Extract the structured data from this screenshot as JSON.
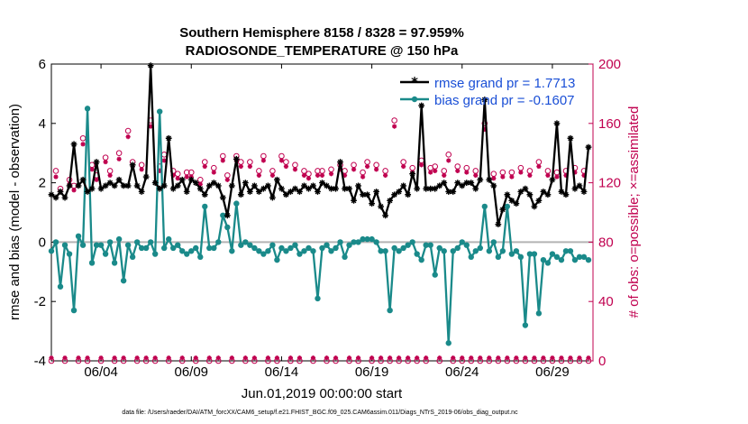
{
  "chart_data": {
    "type": "line",
    "title": "Southern Hemisphere 8158 / 8328 = 97.959%",
    "subtitle": "RADIOSONDE_TEMPERATURE @ 150 hPa",
    "xlabel": "Jun.01,2019 00:00:00 start",
    "ylabel": "rmse and bias (model - observation)",
    "ylabel_right": "# of obs: o=possible; ×=assimilated",
    "ylim": [
      -4,
      6
    ],
    "ylim_right": [
      0,
      200
    ],
    "yticks": [
      "-4",
      "-2",
      "0",
      "2",
      "4",
      "6"
    ],
    "yticks_right": [
      "0",
      "40",
      "80",
      "120",
      "160",
      "200"
    ],
    "xticks": [
      {
        "day": 4,
        "label": "06/04"
      },
      {
        "day": 9,
        "label": "06/09"
      },
      {
        "day": 14,
        "label": "06/14"
      },
      {
        "day": 19,
        "label": "06/19"
      },
      {
        "day": 24,
        "label": "06/24"
      },
      {
        "day": 29,
        "label": "06/29"
      }
    ],
    "xlim": [
      1.25,
      31.25
    ],
    "legend": {
      "placement": "top-right",
      "rmse_label": "rmse grand pr = 1.7713",
      "bias_label": "bias grand pr = -0.1607"
    },
    "footnote": "data file: /Users/raeder/DAI/ATM_forcXX/CAM6_setup/f.e21.FHIST_BGC.f09_025.CAM6assim.011/Diags_NTrS_2019-06/obs_diag_output.nc",
    "series": [
      {
        "name": "rmse",
        "color": "#000000",
        "values": [
          1.6,
          1.5,
          1.7,
          1.5,
          1.9,
          3.3,
          1.9,
          2.1,
          1.7,
          1.8,
          2.7,
          1.8,
          1.9,
          2.0,
          1.9,
          2.1,
          1.9,
          1.9,
          2.6,
          1.9,
          1.7,
          2.2,
          5.95,
          2.0,
          1.8,
          1.9,
          3.5,
          1.8,
          1.9,
          2.1,
          1.7,
          2.1,
          2.0,
          1.8,
          1.6,
          1.9,
          2.0,
          1.9,
          1.5,
          0.9,
          1.9,
          2.8,
          1.6,
          2.0,
          1.7,
          1.9,
          1.7,
          1.8,
          1.9,
          1.5,
          2.1,
          1.8,
          1.6,
          1.7,
          1.8,
          1.7,
          1.9,
          1.8,
          1.9,
          1.7,
          2.0,
          1.9,
          1.8,
          1.8,
          2.7,
          1.8,
          1.8,
          1.4,
          1.9,
          1.6,
          1.6,
          1.3,
          1.7,
          1.2,
          0.9,
          1.4,
          1.6,
          1.7,
          1.9,
          1.6,
          2.3,
          1.8,
          4.6,
          1.8,
          1.8,
          1.8,
          1.9,
          2.0,
          1.7,
          1.7,
          2.0,
          1.9,
          2.0,
          2.0,
          1.8,
          2.1,
          4.8,
          2.1,
          1.9,
          0.6,
          1.1,
          1.6,
          1.4,
          1.3,
          1.7,
          1.8,
          1.6,
          1.2,
          1.4,
          1.7,
          1.6,
          2.1,
          4.0,
          1.7,
          1.6,
          3.5,
          1.8,
          1.9,
          1.7,
          3.2
        ]
      },
      {
        "name": "bias",
        "color": "#1a8a8a",
        "values": [
          -0.3,
          0.0,
          -1.5,
          -0.1,
          -0.4,
          -2.3,
          0.2,
          -0.1,
          4.5,
          -0.7,
          -0.1,
          -0.1,
          -0.4,
          0.0,
          -0.7,
          0.1,
          -1.3,
          -0.1,
          -0.5,
          0.0,
          -0.2,
          -0.2,
          0.0,
          -0.4,
          4.4,
          -0.2,
          0.1,
          -0.2,
          -0.1,
          -0.3,
          -0.4,
          -0.3,
          -0.2,
          -0.5,
          1.2,
          -0.2,
          -0.2,
          0.0,
          0.9,
          0.5,
          -0.3,
          1.3,
          -0.1,
          0.0,
          -0.1,
          -0.2,
          -0.3,
          -0.4,
          -0.3,
          -0.1,
          -0.6,
          -0.2,
          -0.3,
          -0.2,
          -0.1,
          -0.4,
          -0.3,
          -0.2,
          -0.3,
          -1.9,
          -0.2,
          -0.1,
          -0.3,
          -0.2,
          0.0,
          -0.5,
          -0.1,
          0.0,
          0.0,
          0.1,
          0.1,
          0.1,
          0.0,
          -0.3,
          -0.3,
          -2.3,
          -0.2,
          -0.3,
          -0.2,
          -0.1,
          0.0,
          -0.4,
          -0.6,
          -0.1,
          -0.1,
          -1.1,
          -0.2,
          -0.3,
          -3.4,
          -0.3,
          -0.2,
          0.0,
          -0.1,
          -0.5,
          -0.3,
          -0.2,
          1.2,
          -0.3,
          0.0,
          -0.5,
          -0.3,
          1.2,
          -0.4,
          -0.3,
          -0.5,
          -2.8,
          -0.4,
          -0.4,
          -2.4,
          -0.6,
          -0.7,
          -0.4,
          -0.5,
          -0.6,
          -0.3,
          -0.3,
          -0.6,
          -0.5,
          -0.5,
          -0.6
        ]
      },
      {
        "name": "obs possible",
        "axis": "right",
        "color": "#c0004f",
        "marker": "circle",
        "values": [
          0,
          128,
          116,
          0,
          122,
          118,
          0,
          150,
          0,
          132,
          125,
          0,
          137,
          128,
          0,
          140,
          0,
          155,
          134,
          0,
          132,
          0,
          162,
          0,
          131,
          139,
          0,
          128,
          126,
          0,
          127,
          127,
          0,
          122,
          134,
          0,
          130,
          0,
          138,
          125,
          0,
          138,
          134,
          0,
          134,
          0,
          128,
          138,
          0,
          128,
          0,
          138,
          134,
          0,
          132,
          0,
          128,
          126,
          0,
          128,
          128,
          0,
          129,
          0,
          132,
          128,
          0,
          132,
          0,
          127,
          134,
          0,
          132,
          0,
          128,
          0,
          162,
          0,
          134,
          0,
          130,
          0,
          135,
          0,
          130,
          131,
          0,
          128,
          139,
          0,
          131,
          0,
          130,
          0,
          128,
          0,
          160,
          0,
          126,
          0,
          127,
          0,
          127,
          0,
          130,
          0,
          128,
          0,
          134,
          0,
          128,
          0,
          127,
          0,
          128,
          0,
          130,
          0,
          128,
          0
        ]
      },
      {
        "name": "obs assimilated",
        "axis": "right",
        "color": "#c0004f",
        "marker": "star",
        "values": [
          2,
          124,
          114,
          2,
          119,
          115,
          2,
          146,
          2,
          129,
          122,
          2,
          134,
          125,
          2,
          136,
          2,
          151,
          131,
          2,
          129,
          2,
          158,
          2,
          128,
          135,
          2,
          125,
          123,
          2,
          124,
          124,
          2,
          119,
          131,
          2,
          127,
          2,
          135,
          122,
          2,
          135,
          131,
          2,
          131,
          2,
          125,
          135,
          2,
          125,
          2,
          135,
          131,
          2,
          129,
          2,
          125,
          123,
          2,
          125,
          125,
          2,
          126,
          2,
          129,
          125,
          2,
          129,
          2,
          124,
          131,
          2,
          129,
          2,
          125,
          2,
          158,
          2,
          131,
          2,
          127,
          2,
          132,
          2,
          127,
          128,
          2,
          125,
          135,
          2,
          128,
          2,
          127,
          2,
          125,
          2,
          156,
          2,
          123,
          2,
          124,
          2,
          124,
          2,
          127,
          2,
          125,
          2,
          131,
          2,
          125,
          2,
          124,
          2,
          125,
          2,
          127,
          2,
          125,
          2
        ]
      }
    ]
  },
  "colors": {
    "rmse": "#000000",
    "bias": "#1a8a8a",
    "obs": "#c0004f",
    "legend_text": "#1a4fd6",
    "zero_line": "#b3b3b3"
  }
}
